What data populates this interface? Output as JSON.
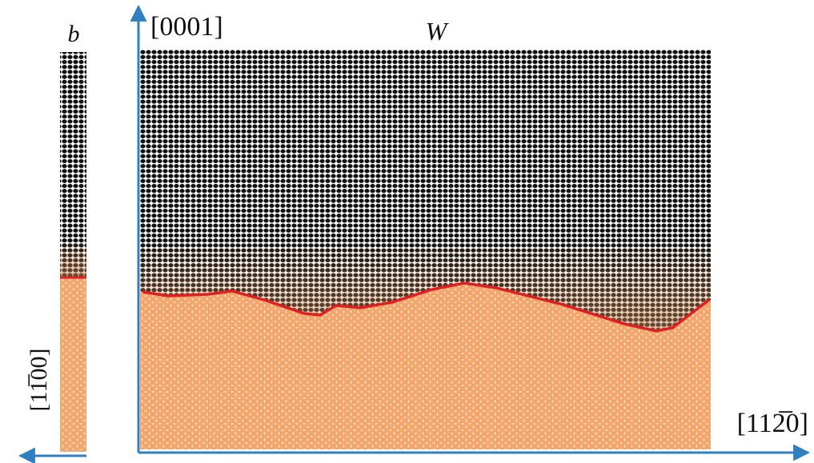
{
  "figure": {
    "panel_label": "b",
    "material_label": "W",
    "vertical_axis_label": "[0001]",
    "horizontal_axis_label": "[112̅0]",
    "side_axis_label": "[11̅00]"
  }
}
